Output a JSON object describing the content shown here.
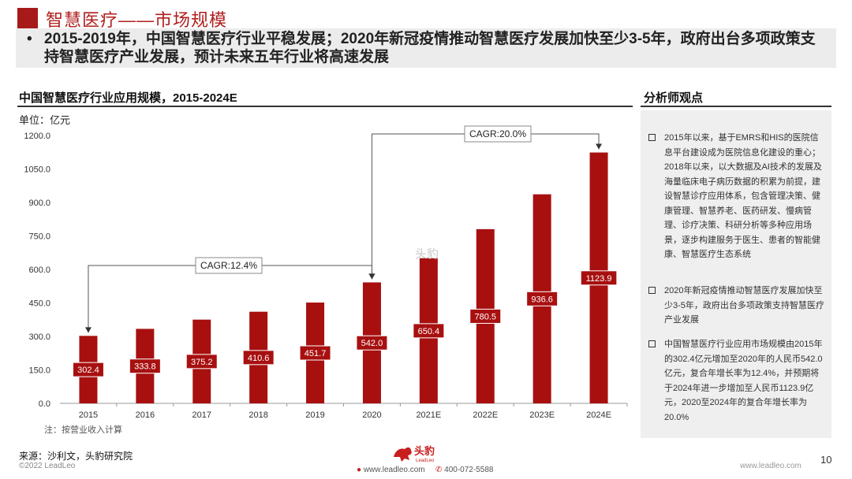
{
  "header": {
    "title": "智慧医疗——市场规模",
    "summary": "2015-2019年，中国智慧医疗行业平稳发展；2020年新冠疫情推动智慧医疗发展加快至少3-5年，政府出台多项政策支持智慧医疗产业发展，预计未来五年行业将高速发展",
    "bullet": "•"
  },
  "chart_data": {
    "type": "bar",
    "title": "中国智慧医疗行业应用规模，2015-2024E",
    "unit": "单位：亿元",
    "categories": [
      "2015",
      "2016",
      "2017",
      "2018",
      "2019",
      "2020",
      "2021E",
      "2022E",
      "2023E",
      "2024E"
    ],
    "values": [
      302.4,
      333.8,
      375.2,
      410.6,
      451.7,
      542.0,
      650.4,
      780.5,
      936.6,
      1123.9
    ],
    "value_labels": [
      "302.4",
      "333.8",
      "375.2",
      "410.6",
      "451.7",
      "542.0",
      "650.4",
      "780.5",
      "936.6",
      "1123.9"
    ],
    "ylim": [
      0,
      1200
    ],
    "yticks": [
      "0.0",
      "150.0",
      "300.0",
      "450.0",
      "600.0",
      "750.0",
      "900.0",
      "1050.0",
      "1200.0"
    ],
    "ytick_values": [
      0,
      150,
      300,
      450,
      600,
      750,
      900,
      1050,
      1200
    ],
    "bar_color": "#a81010",
    "grid": false,
    "annotations": [
      {
        "label": "CAGR:12.4%",
        "from": "2015",
        "to": "2020"
      },
      {
        "label": "CAGR:20.0%",
        "from": "2020",
        "to": "2024E"
      }
    ],
    "note": "注：按营业收入计算"
  },
  "footer": {
    "source": "来源：沙利文，头豹研究院",
    "copyright": "©2022 LeadLeo",
    "watermark": "头豹",
    "logo_text": "头豹",
    "logo_sub": "LeadLeo",
    "web": "www.leadleo.com",
    "phone": "400-072-5588",
    "site": "www.leadleo.com",
    "page_number": "10"
  },
  "panel": {
    "title": "分析师观点",
    "items": [
      "2015年以来，基于EMRS和HIS的医院信息平台建设成为医院信息化建设的重心；2018年以来，以大数据及AI技术的发展及海量临床电子病历数据的积累为前提，建设智慧诊疗应用体系，包含管理决策、健康管理、智慧养老、医药研发、慢病管理、诊疗决策、科研分析等多种应用场景，逐步构建服务于医生、患者的智能健康、智慧医疗生态系统",
      "2020年新冠疫情推动智慧医疗发展加快至少3-5年，政府出台多项政策支持智慧医疗产业发展",
      "中国智慧医疗行业应用市场规模由2015年的302.4亿元增加至2020年的人民币542.0亿元，复合年增长率为12.4%，并预期将于2024年进一步增加至人民币1123.9亿元，2020至2024年的复合年增长率为20.0%"
    ]
  }
}
